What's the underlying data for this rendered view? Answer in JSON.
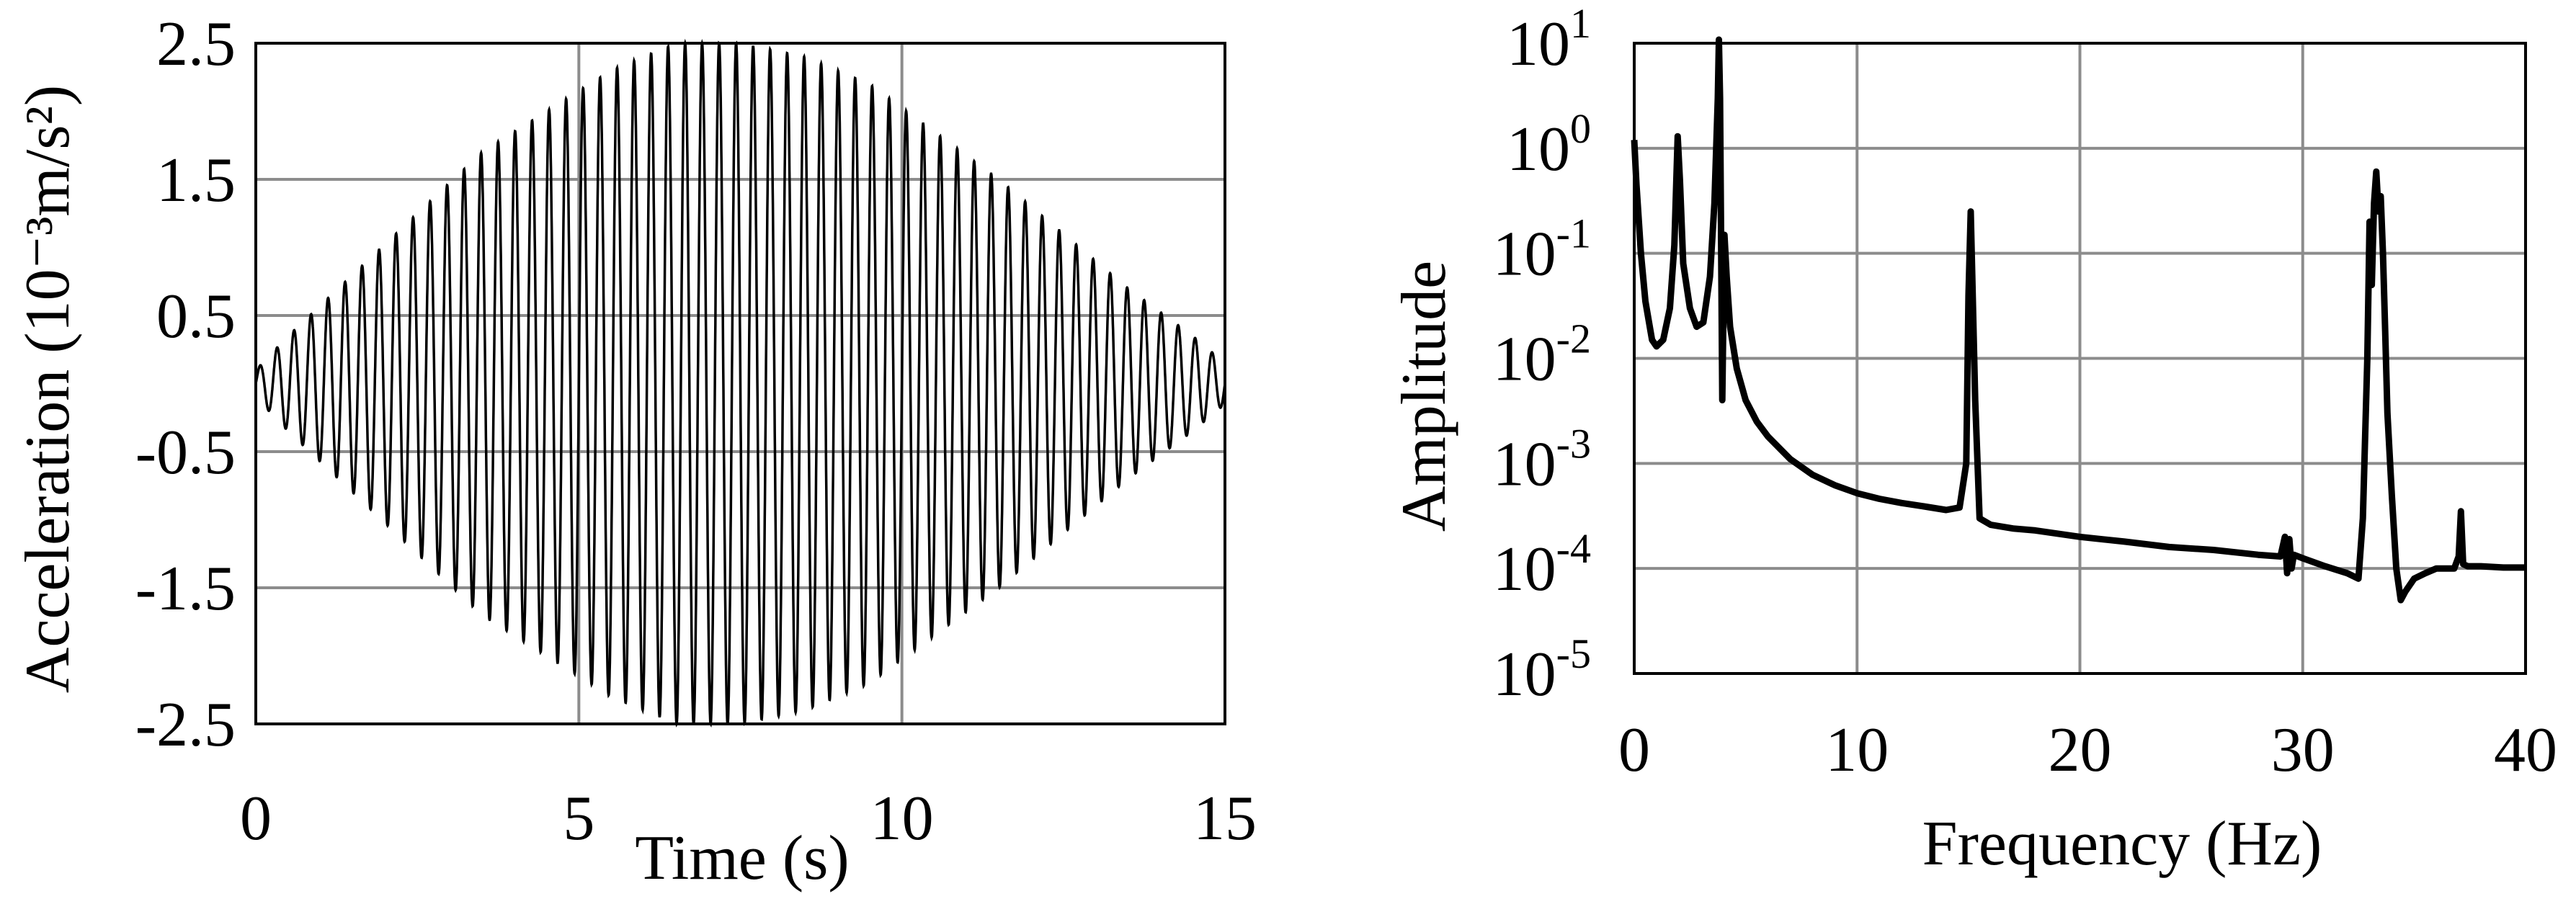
{
  "chart_data": [
    {
      "type": "line",
      "title": "",
      "xlabel": "Time (s)",
      "ylabel": "Acceleration (10⁻³m/s²)",
      "xlim": [
        0,
        15
      ],
      "ylim": [
        -2.5,
        2.5
      ],
      "x_ticks": [
        "0",
        "5",
        "10",
        "15"
      ],
      "y_ticks": [
        "2.5",
        "1.5",
        "0.5",
        "-0.5",
        "-1.5",
        "-2.5"
      ],
      "grid": true,
      "legend": "none",
      "series": [
        {
          "signal": "amplitude-modulated oscillation",
          "frequency_hz": 3.8,
          "envelope": {
            "t": [
              0,
              0.5,
              1.5,
              2.5,
              3.5,
              4.5,
              5.5,
              6.5,
              7.5,
              8.5,
              9.5,
              10.5,
              11.5,
              12.5,
              13.5,
              14.5,
              15
            ],
            "amplitude": [
              0.1,
              0.35,
              0.8,
              1.25,
              1.7,
              2.0,
              2.3,
              2.5,
              2.5,
              2.4,
              2.2,
              1.85,
              1.5,
              1.1,
              0.7,
              0.35,
              0.15
            ]
          },
          "color": "#000000"
        }
      ]
    },
    {
      "type": "line",
      "title": "",
      "xlabel": "Frequency (Hz)",
      "ylabel": "Amplitude",
      "xlim": [
        0,
        40
      ],
      "ylim": [
        1e-05,
        10
      ],
      "y_scale": "log",
      "x_ticks": [
        "0",
        "10",
        "20",
        "30",
        "40"
      ],
      "y_tick_labels": [
        {
          "base": "10",
          "exp": "1"
        },
        {
          "base": "10",
          "exp": "0"
        },
        {
          "base": "10",
          "exp": "-1"
        },
        {
          "base": "10",
          "exp": "-2"
        },
        {
          "base": "10",
          "exp": "-3"
        },
        {
          "base": "10",
          "exp": "-4"
        },
        {
          "base": "10",
          "exp": "-5"
        }
      ],
      "grid": true,
      "legend": "none",
      "series": [
        {
          "color": "#000000",
          "x": [
            0.0,
            0.1,
            0.3,
            0.5,
            0.8,
            1.0,
            1.3,
            1.6,
            1.8,
            1.95,
            2.05,
            2.2,
            2.5,
            2.8,
            3.1,
            3.4,
            3.6,
            3.75,
            3.8,
            3.85,
            3.95,
            4.05,
            4.15,
            4.3,
            4.6,
            5.0,
            5.5,
            6.0,
            7.0,
            8.0,
            9.0,
            10.0,
            11.0,
            12.0,
            13.0,
            14.0,
            14.6,
            14.9,
            15.0,
            15.1,
            15.3,
            15.5,
            16.0,
            17.0,
            18.0,
            20.0,
            22.0,
            24.0,
            26.0,
            28.0,
            29.0,
            29.2,
            29.3,
            29.4,
            29.5,
            29.6,
            30.0,
            31.0,
            32.0,
            32.5,
            32.7,
            32.9,
            33.0,
            33.1,
            33.2,
            33.3,
            33.4,
            33.5,
            33.6,
            33.7,
            33.8,
            34.0,
            34.2,
            34.4,
            34.6,
            35.0,
            35.5,
            36.0,
            36.5,
            36.8,
            37.0,
            37.1,
            37.2,
            37.4,
            38.0,
            39.0,
            40.0
          ],
          "y": [
            1.2,
            0.45,
            0.1,
            0.035,
            0.015,
            0.013,
            0.015,
            0.03,
            0.12,
            1.3,
            0.5,
            0.08,
            0.03,
            0.02,
            0.022,
            0.06,
            0.3,
            3.0,
            14.0,
            3.0,
            0.004,
            0.15,
            0.06,
            0.02,
            0.008,
            0.004,
            0.0025,
            0.0018,
            0.0011,
            0.00078,
            0.00062,
            0.00052,
            0.00046,
            0.00042,
            0.00039,
            0.00036,
            0.00038,
            0.001,
            0.04,
            0.25,
            0.004,
            0.0003,
            0.00026,
            0.00024,
            0.00023,
            0.0002,
            0.00018,
            0.00016,
            0.00015,
            0.000135,
            0.00013,
            0.0002,
            9e-05,
            0.00019,
            0.0001,
            0.000135,
            0.000125,
            0.000105,
            9e-05,
            8e-05,
            0.0003,
            0.01,
            0.2,
            0.05,
            0.3,
            0.6,
            0.25,
            0.35,
            0.1,
            0.018,
            0.003,
            0.0005,
            0.0001,
            5e-05,
            6e-05,
            8e-05,
            9e-05,
            0.0001,
            0.0001,
            0.0001,
            0.00013,
            0.00035,
            0.00011,
            0.000105,
            0.000105,
            0.000102,
            0.000102
          ]
        }
      ]
    }
  ]
}
